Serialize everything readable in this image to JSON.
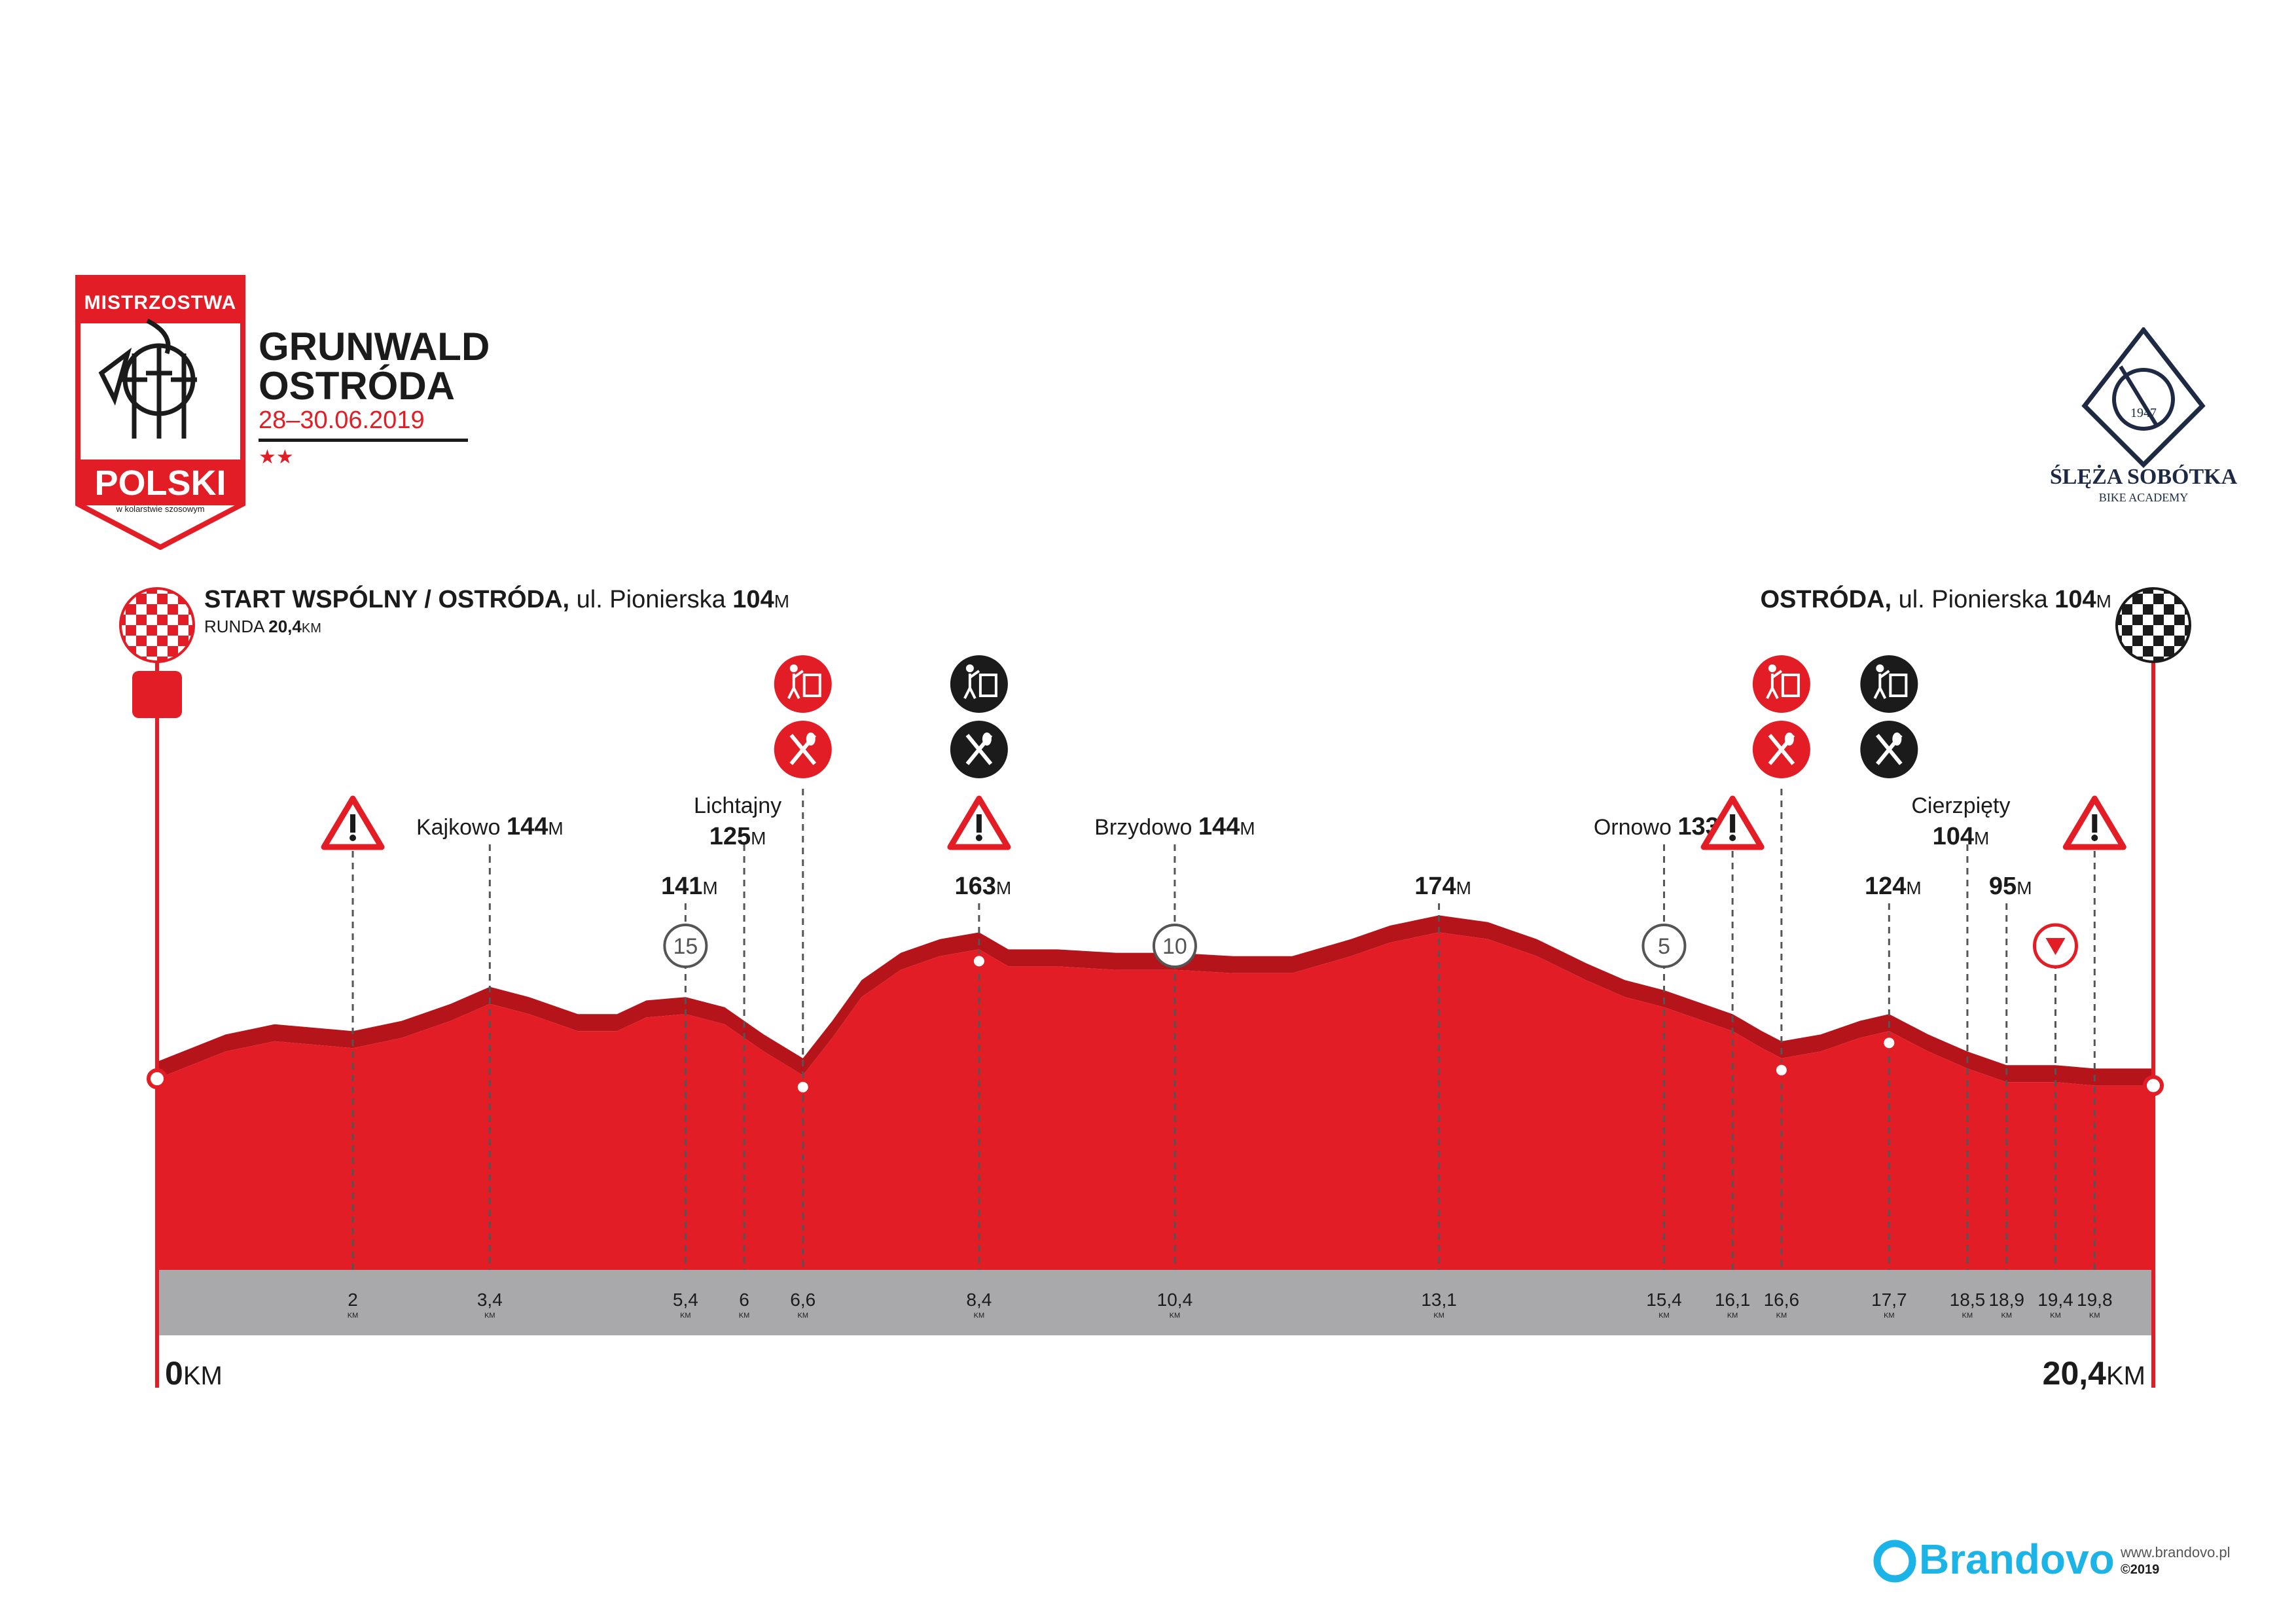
{
  "colors": {
    "red": "#e31d25",
    "dark_red": "#b5141b",
    "black": "#1b1b1b",
    "gray_band": "#a9a9ab",
    "blue_brand": "#1cb3e6"
  },
  "event": {
    "badge_top": "MISTRZOSTWA",
    "badge_main": "POLSKI",
    "badge_sub": "w kolarstwie szosowym",
    "title_line1": "GRUNWALD",
    "title_line2": "OSTRÓDA",
    "dates": "28–30.06.2019",
    "stars": "★★"
  },
  "club": {
    "year": "1947",
    "name": "ŚLĘŻA SOBÓTKA",
    "sub": "BIKE ACADEMY"
  },
  "start": {
    "name_bold": "START WSPÓLNY / OSTRÓDA,",
    "street": " ul. Pionierska ",
    "alt": "104",
    "alt_unit": "M",
    "lap_label": "RUNDA ",
    "lap_value": "20,4",
    "lap_unit": "KM"
  },
  "finish": {
    "name_bold": "OSTRÓDA,",
    "street": " ul. Pionierska ",
    "alt": "104",
    "alt_unit": "M"
  },
  "footer": {
    "brand": "Brandovo",
    "url": "www.brandovo.pl",
    "copyright": "©2019"
  },
  "chart_data": {
    "type": "area",
    "title": "",
    "xlabel": "",
    "ylabel": "",
    "xlim": [
      0,
      20.4
    ],
    "x_unit": "KM",
    "y_unit": "M",
    "start_label": {
      "value": "0",
      "unit": "KM"
    },
    "end_label": {
      "value": "20,4",
      "unit": "KM"
    },
    "profile": {
      "x": [
        0,
        0.7,
        1.2,
        2.0,
        2.5,
        3.0,
        3.4,
        3.8,
        4.3,
        4.7,
        5.0,
        5.4,
        5.8,
        6.2,
        6.6,
        6.9,
        7.2,
        7.6,
        8.0,
        8.4,
        8.7,
        9.2,
        9.8,
        10.4,
        11.0,
        11.6,
        12.2,
        12.6,
        13.1,
        13.6,
        14.1,
        14.6,
        15.0,
        15.4,
        15.8,
        16.1,
        16.4,
        16.6,
        17.0,
        17.4,
        17.7,
        18.1,
        18.5,
        18.9,
        19.4,
        19.8,
        20.1,
        20.4
      ],
      "y": [
        110,
        118,
        121,
        119,
        122,
        127,
        132,
        129,
        124,
        124,
        128,
        129,
        126,
        118,
        111,
        122,
        134,
        142,
        146,
        148,
        143,
        143,
        142,
        142,
        141,
        141,
        146,
        150,
        153,
        151,
        146,
        139,
        134,
        131,
        127,
        124,
        119,
        116,
        118,
        122,
        124,
        118,
        113,
        109,
        109,
        108,
        108,
        108
      ]
    },
    "km_ticks": [
      {
        "km": 2,
        "label": "2",
        "unit": "KM"
      },
      {
        "km": 3.4,
        "label": "3,4",
        "unit": "KM"
      },
      {
        "km": 5.4,
        "label": "5,4",
        "unit": "KM"
      },
      {
        "km": 6,
        "label": "6",
        "unit": "KM"
      },
      {
        "km": 6.6,
        "label": "6,6",
        "unit": "KM"
      },
      {
        "km": 8.4,
        "label": "8,4",
        "unit": "KM"
      },
      {
        "km": 10.4,
        "label": "10,4",
        "unit": "KM"
      },
      {
        "km": 13.1,
        "label": "13,1",
        "unit": "KM"
      },
      {
        "km": 15.4,
        "label": "15,4",
        "unit": "KM"
      },
      {
        "km": 16.1,
        "label": "16,1",
        "unit": "KM"
      },
      {
        "km": 16.6,
        "label": "16,6",
        "unit": "KM"
      },
      {
        "km": 17.7,
        "label": "17,7",
        "unit": "KM"
      },
      {
        "km": 18.5,
        "label": "18,5",
        "unit": "KM"
      },
      {
        "km": 18.9,
        "label": "18,9",
        "unit": "KM"
      },
      {
        "km": 19.4,
        "label": "19,4",
        "unit": "KM"
      },
      {
        "km": 19.8,
        "label": "19,8",
        "unit": "KM"
      }
    ],
    "annotations": [
      {
        "km": 2,
        "type": "warning-icon",
        "name": "",
        "alt": "",
        "unit": "",
        "tier": "icon"
      },
      {
        "km": 3.4,
        "type": "place",
        "name": "Kajkowo ",
        "alt": "144",
        "unit": "M",
        "tier": "inline"
      },
      {
        "km": 5.4,
        "type": "altitude",
        "name": "",
        "alt": "141",
        "unit": "M",
        "tier": "low",
        "marker": "15"
      },
      {
        "km": 6,
        "type": "place",
        "name": "Lichtajny",
        "alt": "125",
        "unit": "M",
        "tier": "stacked"
      },
      {
        "km": 6.6,
        "type": "feed-zone",
        "name": "",
        "alt": "",
        "unit": "",
        "tier": "feed",
        "color": "red"
      },
      {
        "km": 8.4,
        "type": "feed-zone",
        "name": "",
        "alt": "163",
        "unit": "M",
        "tier": "feed-alt",
        "color": "black",
        "warning": true
      },
      {
        "km": 10.4,
        "type": "place",
        "name": "Brzydowo ",
        "alt": "144",
        "unit": "M",
        "tier": "inline",
        "marker": "10"
      },
      {
        "km": 13.1,
        "type": "altitude",
        "name": "",
        "alt": "174",
        "unit": "M",
        "tier": "low"
      },
      {
        "km": 15.4,
        "type": "place",
        "name": "Ornowo ",
        "alt": "133",
        "unit": "M",
        "tier": "inline",
        "marker": "5"
      },
      {
        "km": 16.1,
        "type": "warning-icon",
        "name": "",
        "alt": "",
        "unit": "",
        "tier": "icon"
      },
      {
        "km": 16.6,
        "type": "feed-zone",
        "name": "",
        "alt": "",
        "unit": "",
        "tier": "feed",
        "color": "red"
      },
      {
        "km": 17.7,
        "type": "feed-zone",
        "name": "",
        "alt": "124",
        "unit": "M",
        "tier": "feed-alt",
        "color": "black"
      },
      {
        "km": 18.5,
        "type": "place",
        "name": "Cierzpięty",
        "alt": "104",
        "unit": "M",
        "tier": "stacked"
      },
      {
        "km": 18.9,
        "type": "altitude",
        "name": "",
        "alt": "95",
        "unit": "M",
        "tier": "low"
      },
      {
        "km": 19.4,
        "type": "descent-icon",
        "name": "",
        "alt": "",
        "unit": "",
        "tier": "marker"
      },
      {
        "km": 19.8,
        "type": "warning-icon",
        "name": "",
        "alt": "",
        "unit": "",
        "tier": "icon"
      }
    ]
  }
}
